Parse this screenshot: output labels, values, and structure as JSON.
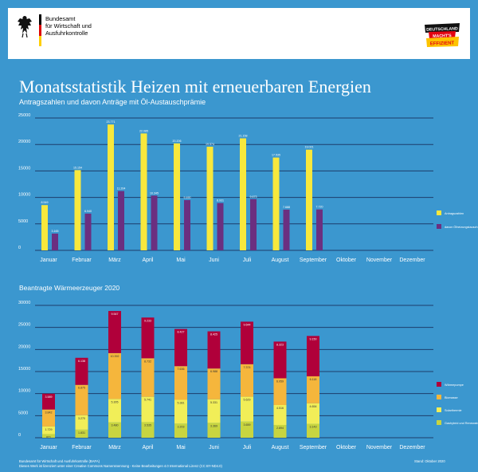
{
  "header": {
    "ministry_lines": [
      "Bundesamt",
      "für Wirtschaft und",
      "Ausfuhrkontrolle"
    ],
    "badge_lines": [
      "DEUTSCHLAND",
      "MACHT'S",
      "EFFIZIENT"
    ],
    "flag_colors": [
      "#000000",
      "#dd0000",
      "#ffce00"
    ]
  },
  "title": "Monatsstatistik Heizen mit erneuerbaren Energien",
  "subtitle": "Antragszahlen und davon Anträge mit Öl-Austauschprämie",
  "colors": {
    "background": "#3b97cf",
    "gridline": "#1d3d6b",
    "yellow": "#f8e83c",
    "purple": "#6b2f80",
    "red": "#b0003a",
    "orange": "#f5b63c",
    "light_yellow": "#f1ee58",
    "green": "#c8d540"
  },
  "chart_data": [
    {
      "type": "bar",
      "title": "",
      "categories": [
        "Januar",
        "Februar",
        "März",
        "April",
        "Mai",
        "Juni",
        "Juli",
        "August",
        "September",
        "Oktober",
        "November",
        "Dezember"
      ],
      "ylim": [
        0,
        25000
      ],
      "yticks": [
        0,
        5000,
        10000,
        15000,
        20000,
        25000
      ],
      "ytick_labels": [
        "0",
        "5000",
        "10000",
        "15000",
        "20000",
        "25000"
      ],
      "series": [
        {
          "name": "Antragszahlen",
          "color": "#f8e83c",
          "values": [
            8549,
            15154,
            23771,
            22085,
            20206,
            19574,
            21158,
            17535,
            19021,
            null,
            null,
            null
          ],
          "labels": [
            "8.549",
            "15.154",
            "23.771",
            "22.085",
            "20.206",
            "19.574",
            "21.158",
            "17.535",
            "19.021",
            "",
            "",
            ""
          ]
        },
        {
          "name": "davon Ölheizungstausch",
          "color": "#6b2f80",
          "values": [
            3165,
            6940,
            11204,
            10345,
            9490,
            8931,
            9673,
            7688,
            7720,
            null,
            null,
            null
          ],
          "labels": [
            "3.165",
            "6.940",
            "11.204",
            "10.345",
            "9.490",
            "8.931",
            "9.673",
            "7.688",
            "7.720",
            "",
            "",
            ""
          ]
        }
      ],
      "legend": [
        {
          "label": "Antragszahlen",
          "color": "#f8e83c"
        },
        {
          "label": "davon Ölheizungstausch",
          "color": "#6b2f80"
        }
      ]
    },
    {
      "type": "bar",
      "stacked": true,
      "title": "Beantragte Wärmeerzeuger 2020",
      "categories": [
        "Januar",
        "Februar",
        "März",
        "April",
        "Mai",
        "Juni",
        "Juli",
        "August",
        "September",
        "Oktober",
        "November",
        "Dezember"
      ],
      "ylim": [
        0,
        30000
      ],
      "yticks": [
        0,
        5000,
        10000,
        15000,
        20000,
        25000,
        30000
      ],
      "ytick_labels": [
        "0",
        "5000",
        "10000",
        "15000",
        "20000",
        "25000",
        "30000"
      ],
      "series": [
        {
          "name": "Gashybrid und Renewable-Ready",
          "color": "#c8d540",
          "values": [
            821,
            1831,
            3480,
            3535,
            3203,
            3369,
            3659,
            2894,
            3143,
            null,
            null,
            null
          ],
          "labels": [
            "821",
            "1.831",
            "3.480",
            "3.535",
            "3.203",
            "3.369",
            "3.659",
            "2.894",
            "3.143",
            "",
            "",
            ""
          ]
        },
        {
          "name": "Solarthermie",
          "color": "#f1ee58",
          "values": [
            1729,
            3270,
            5305,
            5741,
            5381,
            5331,
            5629,
            4516,
            4654,
            null,
            null,
            null
          ],
          "labels": [
            "1.729",
            "3.270",
            "5.305",
            "5.741",
            "5.381",
            "5.331",
            "5.629",
            "4.516",
            "4.654",
            "",
            "",
            ""
          ]
        },
        {
          "name": "Biomasse",
          "color": "#f5b63c",
          "values": [
            3842,
            6875,
            10392,
            8732,
            7636,
            6988,
            7374,
            6059,
            6118,
            null,
            null,
            null
          ],
          "labels": [
            "3.842",
            "6.875",
            "10.392",
            "8.732",
            "7.636",
            "6.988",
            "7.374",
            "6.059",
            "6.118",
            "",
            "",
            ""
          ]
        },
        {
          "name": "Wärmepumpe",
          "color": "#b0003a",
          "values": [
            3589,
            6138,
            9547,
            9233,
            8427,
            8425,
            9644,
            8323,
            9150,
            null,
            null,
            null
          ],
          "labels": [
            "3.589",
            "6.138",
            "9.547",
            "9.233",
            "8.427",
            "8.425",
            "9.644",
            "8.323",
            "9.150",
            "",
            "",
            ""
          ]
        }
      ],
      "legend": [
        {
          "label": "Wärmepumpe",
          "color": "#b0003a"
        },
        {
          "label": "Biomasse",
          "color": "#f5b63c"
        },
        {
          "label": "Solarthermie",
          "color": "#f1ee58"
        },
        {
          "label": "Gashybrid und Renewable-Ready",
          "color": "#c8d540"
        }
      ]
    }
  ],
  "footer": {
    "lines": [
      "Bundesamt für Wirtschaft und Ausfuhrkontrolle (BAFA)",
      "Dieses Werk ist lizenziert unter einer Creative Commons Namensnennung - Keine Bearbeitungen 4.0 International Lizenz (CC BY-ND4.0)"
    ],
    "date": "Stand: Oktober 2020"
  }
}
